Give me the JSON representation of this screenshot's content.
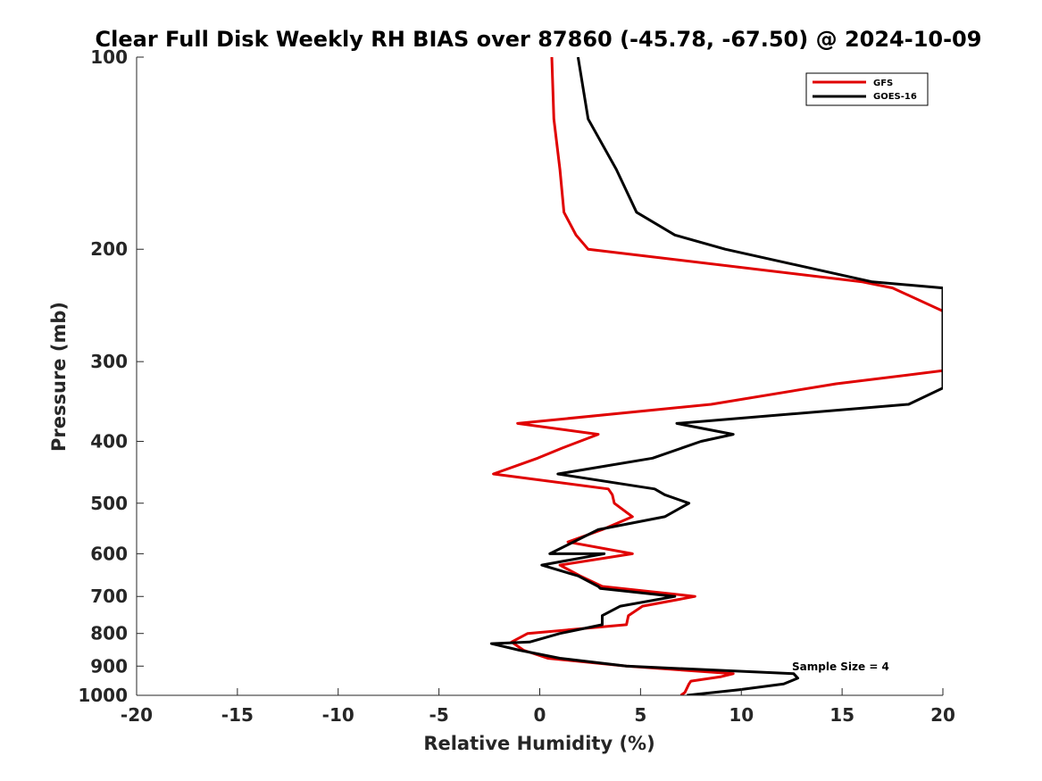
{
  "chart_data": {
    "type": "line",
    "title": "Clear Full Disk Weekly RH BIAS over 87860 (-45.78, -67.50) @ 2024-10-09",
    "xlabel": "Relative Humidity (%)",
    "ylabel": "Pressure (mb)",
    "xlim": [
      -20,
      20
    ],
    "ylim": [
      100,
      1000
    ],
    "y_scale": "log",
    "y_reversed": true,
    "x_ticks": [
      "-20",
      "-15",
      "-10",
      "-5",
      "0",
      "5",
      "10",
      "15",
      "20"
    ],
    "y_ticks": [
      "100",
      "200",
      "300",
      "400",
      "500",
      "600",
      "700",
      "800",
      "900",
      "1000"
    ],
    "grid": false,
    "legend_position": "top-right",
    "annotation": "Sample Size = 4",
    "series": [
      {
        "name": "GFS",
        "color": "#e00000",
        "points": [
          [
            0.6,
            100
          ],
          [
            0.7,
            125
          ],
          [
            1.0,
            150
          ],
          [
            1.2,
            175
          ],
          [
            1.8,
            190
          ],
          [
            2.4,
            200
          ],
          [
            16.0,
            225
          ],
          [
            17.5,
            230
          ],
          [
            20.0,
            250
          ],
          [
            20.0,
            300
          ],
          [
            20.0,
            310
          ],
          [
            14.7,
            325
          ],
          [
            8.5,
            350
          ],
          [
            -1.1,
            375
          ],
          [
            2.9,
            390
          ],
          [
            1.1,
            410
          ],
          [
            -0.1,
            425
          ],
          [
            -2.3,
            450
          ],
          [
            3.4,
            475
          ],
          [
            3.6,
            485
          ],
          [
            3.7,
            500
          ],
          [
            4.6,
            525
          ],
          [
            3.1,
            550
          ],
          [
            1.4,
            575
          ],
          [
            4.6,
            600
          ],
          [
            1.0,
            625
          ],
          [
            2.0,
            650
          ],
          [
            3.1,
            675
          ],
          [
            7.7,
            700
          ],
          [
            5.1,
            725
          ],
          [
            4.4,
            750
          ],
          [
            4.3,
            775
          ],
          [
            -0.6,
            800
          ],
          [
            -1.4,
            825
          ],
          [
            -0.8,
            850
          ],
          [
            0.4,
            875
          ],
          [
            4.3,
            900
          ],
          [
            9.6,
            925
          ],
          [
            9.0,
            935
          ],
          [
            7.5,
            950
          ],
          [
            7.4,
            960
          ],
          [
            7.2,
            990
          ],
          [
            7.0,
            1000
          ]
        ]
      },
      {
        "name": "GOES-16",
        "color": "#000000",
        "points": [
          [
            1.9,
            100
          ],
          [
            2.4,
            125
          ],
          [
            3.8,
            150
          ],
          [
            4.8,
            175
          ],
          [
            6.7,
            190
          ],
          [
            9.2,
            200
          ],
          [
            16.5,
            225
          ],
          [
            20.0,
            230
          ],
          [
            20.0,
            330
          ],
          [
            18.3,
            350
          ],
          [
            6.8,
            375
          ],
          [
            9.6,
            390
          ],
          [
            8.0,
            400
          ],
          [
            5.6,
            425
          ],
          [
            0.9,
            450
          ],
          [
            5.7,
            475
          ],
          [
            6.2,
            485
          ],
          [
            7.4,
            500
          ],
          [
            6.2,
            525
          ],
          [
            2.9,
            550
          ],
          [
            0.5,
            600
          ],
          [
            3.2,
            600
          ],
          [
            0.1,
            625
          ],
          [
            1.9,
            650
          ],
          [
            2.9,
            675
          ],
          [
            3.0,
            680
          ],
          [
            6.7,
            700
          ],
          [
            4.0,
            725
          ],
          [
            3.1,
            750
          ],
          [
            3.1,
            775
          ],
          [
            1.0,
            800
          ],
          [
            -0.5,
            825
          ],
          [
            -2.4,
            830
          ],
          [
            -1.0,
            850
          ],
          [
            1.0,
            875
          ],
          [
            4.3,
            900
          ],
          [
            12.6,
            925
          ],
          [
            12.8,
            940
          ],
          [
            12.1,
            960
          ],
          [
            9.9,
            980
          ],
          [
            7.3,
            1000
          ]
        ]
      }
    ]
  }
}
